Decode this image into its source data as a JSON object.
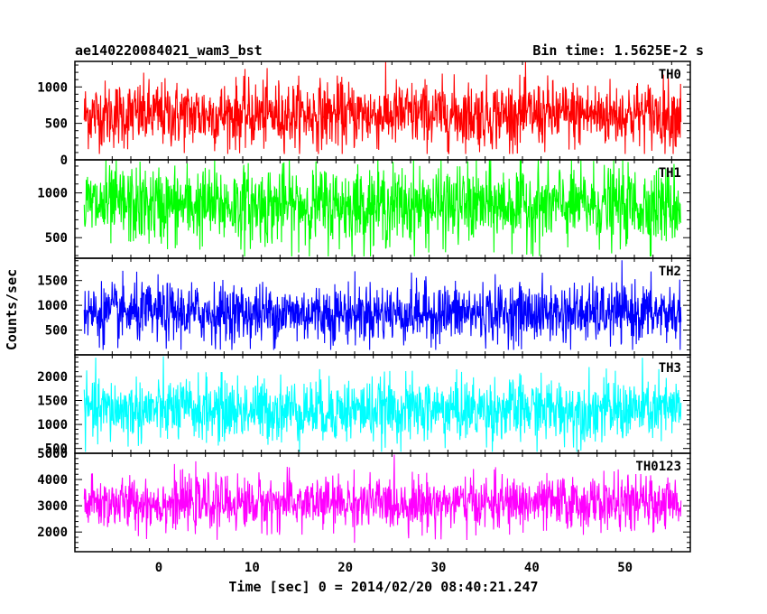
{
  "chart_data": {
    "type": "line",
    "title_left": "ae140220084021_wam3_bst",
    "title_right": "Bin time: 1.5625E-2 s",
    "xlabel": "Time [sec] 0 = 2014/02/20 08:40:21.247",
    "ylabel": "Counts/sec",
    "xlim": [
      -9,
      57
    ],
    "data_x_range": [
      -8,
      56
    ],
    "x_ticks": [
      0,
      10,
      20,
      30,
      40,
      50
    ],
    "grid": false,
    "panels": [
      {
        "name": "TH0",
        "color": "#ff0000",
        "ylim": [
          0,
          1350
        ],
        "y_ticks": [
          0,
          500,
          1000
        ],
        "mean": 620,
        "spread": 230,
        "min": 80,
        "max": 1340
      },
      {
        "name": "TH1",
        "color": "#00ff00",
        "ylim": [
          270,
          1370
        ],
        "y_ticks": [
          500,
          1000
        ],
        "mean": 860,
        "spread": 220,
        "min": 290,
        "max": 1370
      },
      {
        "name": "TH2",
        "color": "#0000ff",
        "ylim": [
          0,
          1950
        ],
        "y_ticks": [
          500,
          1000,
          1500
        ],
        "mean": 840,
        "spread": 300,
        "min": 100,
        "max": 1940
      },
      {
        "name": "TH3",
        "color": "#00ffff",
        "ylim": [
          400,
          2450
        ],
        "y_ticks": [
          500,
          1000,
          1500,
          2000
        ],
        "mean": 1300,
        "spread": 330,
        "min": 430,
        "max": 2420
      },
      {
        "name": "TH0123",
        "color": "#ff00ff",
        "ylim": [
          1250,
          5000
        ],
        "y_ticks": [
          2000,
          3000,
          4000,
          5000
        ],
        "mean": 3100,
        "spread": 500,
        "min": 1350,
        "max": 4950
      }
    ]
  }
}
